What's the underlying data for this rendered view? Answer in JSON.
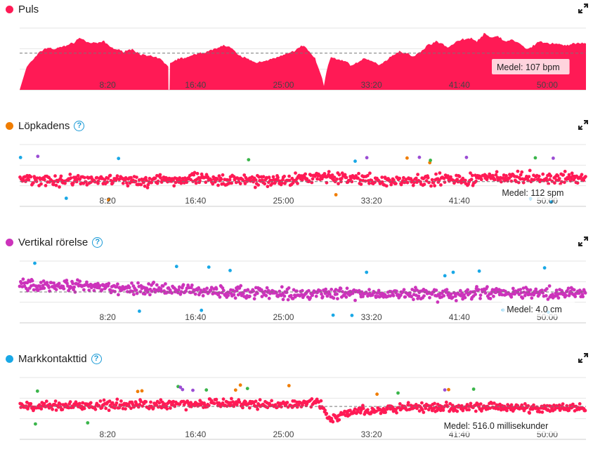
{
  "colors": {
    "heart": "#ff1a55",
    "cadence": "#f07d00",
    "vertical": "#cc33bb",
    "contact": "#19a8e6",
    "green": "#3ab54a",
    "purple": "#9b4dd4"
  },
  "icons": {
    "expand": "expand-arrows-icon",
    "help": "question-circle-icon"
  },
  "chart_data": [
    {
      "id": "puls",
      "type": "area",
      "title": "Puls",
      "help": false,
      "x_ticks": [
        "8:20",
        "16:40",
        "25:00",
        "33:20",
        "41:40",
        "50:00"
      ],
      "x_tick_seconds": [
        500,
        1000,
        1500,
        2000,
        2500,
        3000
      ],
      "xlim_seconds": [
        0,
        3220
      ],
      "ylim": [
        88,
        120
      ],
      "average": 107,
      "average_label": "Medel: 107 bpm",
      "grid": true,
      "series": [
        {
          "name": "Puls",
          "points": [
            [
              0,
              88
            ],
            [
              40,
              100
            ],
            [
              80,
              104
            ],
            [
              120,
              108
            ],
            [
              160,
              110
            ],
            [
              200,
              109
            ],
            [
              260,
              111
            ],
            [
              300,
              112
            ],
            [
              340,
              115
            ],
            [
              380,
              113
            ],
            [
              420,
              112
            ],
            [
              480,
              113
            ],
            [
              520,
              110
            ],
            [
              580,
              108
            ],
            [
              640,
              109
            ],
            [
              700,
              106
            ],
            [
              760,
              105
            ],
            [
              800,
              104
            ],
            [
              845,
              100
            ],
            [
              846,
              88
            ],
            [
              852,
              88
            ],
            [
              855,
              102
            ],
            [
              900,
              104
            ],
            [
              960,
              105
            ],
            [
              1020,
              107
            ],
            [
              1080,
              108
            ],
            [
              1120,
              110
            ],
            [
              1160,
              111
            ],
            [
              1200,
              110
            ],
            [
              1240,
              106
            ],
            [
              1300,
              104
            ],
            [
              1340,
              102
            ],
            [
              1380,
              103
            ],
            [
              1440,
              104
            ],
            [
              1500,
              106
            ],
            [
              1560,
              108
            ],
            [
              1600,
              111
            ],
            [
              1640,
              109
            ],
            [
              1680,
              104
            ],
            [
              1700,
              99
            ],
            [
              1720,
              94
            ],
            [
              1730,
              90
            ],
            [
              1745,
              98
            ],
            [
              1770,
              105
            ],
            [
              1800,
              104
            ],
            [
              1850,
              103
            ],
            [
              1880,
              101
            ],
            [
              1920,
              102
            ],
            [
              1960,
              104
            ],
            [
              2000,
              103
            ],
            [
              2040,
              101
            ],
            [
              2080,
              103
            ],
            [
              2120,
              106
            ],
            [
              2160,
              108
            ],
            [
              2200,
              107
            ],
            [
              2240,
              105
            ],
            [
              2280,
              108
            ],
            [
              2320,
              111
            ],
            [
              2360,
              113
            ],
            [
              2400,
              112
            ],
            [
              2440,
              110
            ],
            [
              2480,
              113
            ],
            [
              2520,
              114
            ],
            [
              2560,
              115
            ],
            [
              2600,
              113
            ],
            [
              2640,
              117
            ],
            [
              2680,
              115
            ],
            [
              2720,
              116
            ],
            [
              2760,
              113
            ],
            [
              2800,
              114
            ],
            [
              2840,
              112
            ],
            [
              2880,
              109
            ],
            [
              2920,
              111
            ],
            [
              2960,
              113
            ],
            [
              3000,
              112
            ],
            [
              3060,
              112
            ],
            [
              3100,
              111
            ],
            [
              3160,
              112
            ],
            [
              3220,
              112
            ]
          ]
        }
      ]
    },
    {
      "id": "lopkadens",
      "type": "scatter",
      "title": "Löpkadens",
      "help": true,
      "x_ticks": [
        "8:20",
        "16:40",
        "25:00",
        "33:20",
        "41:40",
        "50:00"
      ],
      "x_tick_seconds": [
        500,
        1000,
        1500,
        2000,
        2500,
        3000
      ],
      "xlim_seconds": [
        0,
        3220
      ],
      "ylim": [
        80,
        160
      ],
      "average": 112,
      "average_label": "Medel: 112 spm",
      "grid": true,
      "baseline": [
        [
          0,
          115
        ],
        [
          400,
          113
        ],
        [
          800,
          114
        ],
        [
          1200,
          115
        ],
        [
          1500,
          113
        ],
        [
          1700,
          120
        ],
        [
          2000,
          113
        ],
        [
          2400,
          114
        ],
        [
          2700,
          117
        ],
        [
          3000,
          116
        ],
        [
          3220,
          118
        ]
      ],
      "spread": 7
    },
    {
      "id": "vertikal",
      "type": "scatter",
      "title": "Vertikal rörelse",
      "help": true,
      "x_ticks": [
        "8:20",
        "16:40",
        "25:00",
        "33:20",
        "41:40",
        "50:00"
      ],
      "x_tick_seconds": [
        500,
        1000,
        1500,
        2000,
        2500,
        3000
      ],
      "xlim_seconds": [
        0,
        3220
      ],
      "ylim": [
        2,
        6
      ],
      "average": 4.0,
      "average_label": "Medel: 4.0 cm",
      "grid": true,
      "baseline": [
        [
          0,
          4.5
        ],
        [
          400,
          4.3
        ],
        [
          800,
          4.2
        ],
        [
          1200,
          4.0
        ],
        [
          1600,
          3.9
        ],
        [
          2000,
          3.9
        ],
        [
          2400,
          3.8
        ],
        [
          2800,
          4.0
        ],
        [
          3220,
          3.9
        ]
      ],
      "spread": 0.35
    },
    {
      "id": "markkontakt",
      "type": "scatter",
      "title": "Markkontakttid",
      "help": true,
      "x_ticks": [
        "8:20",
        "16:40",
        "25:00",
        "33:20",
        "41:40",
        "50:00"
      ],
      "x_tick_seconds": [
        500,
        1000,
        1500,
        2000,
        2500,
        3000
      ],
      "xlim_seconds": [
        0,
        3220
      ],
      "ylim": [
        420,
        600
      ],
      "average": 516.0,
      "average_label": "Medel: 516.0 millisekunder",
      "grid": true,
      "baseline": [
        [
          0,
          515
        ],
        [
          400,
          520
        ],
        [
          800,
          520
        ],
        [
          1200,
          525
        ],
        [
          1500,
          520
        ],
        [
          1700,
          530
        ],
        [
          1760,
          480
        ],
        [
          1900,
          500
        ],
        [
          2200,
          515
        ],
        [
          2600,
          515
        ],
        [
          3000,
          510
        ],
        [
          3220,
          512
        ]
      ],
      "spread": 12
    }
  ]
}
